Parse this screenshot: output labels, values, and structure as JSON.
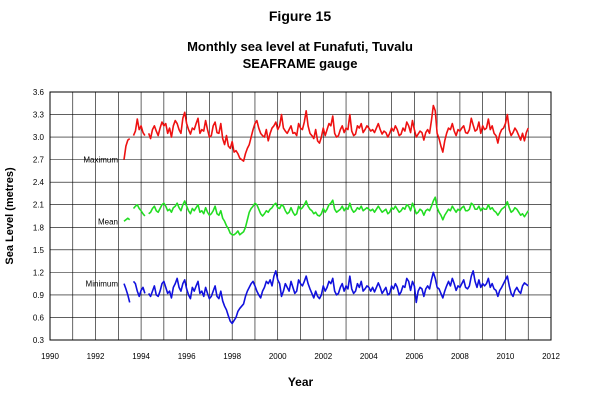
{
  "figure_label": "Figure 15",
  "chart_data": {
    "type": "line",
    "title": "Monthly sea level at Funafuti, Tuvalu",
    "subtitle": "SEAFRAME gauge",
    "xlabel": "Year",
    "ylabel": "Sea Level (metres)",
    "xlim": [
      1990,
      2012
    ],
    "ylim": [
      0.3,
      3.6
    ],
    "xticks": [
      1990,
      1992,
      1994,
      1996,
      1998,
      2000,
      2002,
      2004,
      2006,
      2008,
      2010,
      2012
    ],
    "yticks": [
      0.3,
      0.6,
      0.9,
      1.2,
      1.5,
      1.8,
      2.1,
      2.4,
      2.7,
      3.0,
      3.3,
      3.6
    ],
    "x_start": 1993.25,
    "x_step": 0.0833333,
    "series": [
      {
        "name": "Maximum",
        "color": "#ee1111",
        "values": [
          2.7,
          2.88,
          2.96,
          2.98,
          null,
          3.02,
          3.08,
          3.24,
          3.1,
          3.15,
          3.06,
          3.02,
          null,
          3.05,
          2.98,
          3.1,
          3.15,
          3.08,
          3.02,
          3.12,
          3.2,
          3.15,
          3.18,
          3.05,
          3.12,
          3.0,
          3.15,
          3.22,
          3.18,
          3.1,
          3.05,
          3.25,
          3.33,
          3.18,
          3.1,
          3.04,
          3.12,
          3.1,
          3.18,
          3.25,
          3.05,
          3.1,
          3.08,
          3.22,
          3.1,
          3.0,
          3.02,
          3.15,
          3.2,
          3.06,
          3.05,
          3.18,
          2.98,
          2.9,
          3.02,
          2.88,
          2.85,
          2.94,
          2.8,
          2.82,
          2.78,
          2.72,
          2.7,
          2.68,
          2.78,
          2.85,
          2.9,
          3.0,
          3.1,
          3.18,
          3.22,
          3.12,
          3.05,
          3.02,
          3.0,
          3.1,
          2.95,
          3.05,
          3.12,
          3.15,
          3.2,
          3.1,
          3.15,
          3.3,
          3.12,
          3.08,
          3.05,
          3.1,
          3.15,
          3.05,
          3.06,
          3.02,
          3.18,
          3.12,
          3.1,
          3.2,
          3.35,
          3.15,
          3.05,
          3.02,
          2.98,
          3.1,
          2.95,
          2.92,
          3.0,
          3.12,
          3.02,
          3.1,
          3.18,
          3.15,
          3.28,
          3.05,
          3.0,
          3.02,
          3.1,
          3.15,
          3.06,
          3.12,
          3.1,
          3.3,
          3.08,
          3.02,
          3.04,
          3.15,
          3.12,
          3.18,
          3.06,
          3.1,
          3.15,
          3.12,
          3.08,
          3.1,
          3.06,
          3.12,
          3.18,
          3.1,
          3.04,
          3.08,
          3.06,
          3.0,
          3.05,
          3.12,
          3.08,
          3.15,
          3.1,
          3.02,
          3.04,
          3.12,
          3.08,
          3.2,
          3.15,
          3.06,
          3.22,
          3.1,
          3.0,
          3.04,
          3.08,
          3.06,
          2.96,
          3.06,
          3.1,
          3.05,
          3.22,
          3.42,
          3.35,
          3.05,
          2.98,
          2.88,
          2.8,
          2.95,
          3.05,
          3.12,
          3.1,
          3.18,
          3.08,
          3.02,
          3.1,
          3.08,
          3.12,
          3.15,
          3.06,
          3.05,
          3.1,
          3.25,
          3.16,
          3.08,
          3.1,
          3.2,
          3.05,
          3.15,
          3.1,
          3.12,
          3.24,
          3.1,
          3.15,
          3.05,
          3.02,
          2.92,
          3.04,
          3.1,
          3.12,
          3.18,
          3.3,
          3.1,
          3.02,
          3.06,
          3.12,
          3.08,
          3.02,
          2.96,
          3.05,
          2.95,
          3.06,
          3.12
        ]
      },
      {
        "name": "Mean",
        "color": "#22dd22",
        "values": [
          1.88,
          1.9,
          1.92,
          1.9,
          null,
          2.05,
          2.08,
          2.1,
          2.05,
          2.02,
          1.98,
          1.95,
          null,
          1.98,
          2.0,
          2.05,
          2.08,
          2.02,
          2.0,
          2.05,
          2.1,
          2.12,
          2.08,
          2.02,
          2.04,
          2.0,
          2.06,
          2.08,
          2.12,
          2.06,
          2.02,
          2.1,
          2.15,
          2.08,
          2.02,
          1.98,
          2.05,
          2.02,
          2.06,
          2.1,
          2.0,
          2.02,
          1.98,
          2.06,
          2.0,
          1.96,
          1.98,
          2.02,
          2.08,
          1.98,
          1.96,
          2.02,
          1.92,
          1.88,
          1.82,
          1.78,
          1.72,
          1.7,
          1.7,
          1.72,
          1.75,
          1.7,
          1.72,
          1.74,
          1.8,
          1.9,
          2.0,
          2.05,
          2.08,
          2.12,
          2.1,
          2.04,
          1.98,
          1.95,
          1.98,
          2.02,
          2.0,
          2.04,
          2.06,
          2.1,
          2.12,
          2.06,
          2.05,
          2.1,
          2.08,
          2.02,
          1.98,
          2.0,
          2.06,
          2.0,
          1.96,
          1.98,
          2.08,
          2.04,
          2.06,
          2.1,
          2.15,
          2.08,
          2.04,
          2.02,
          1.98,
          2.0,
          1.96,
          1.95,
          1.98,
          2.05,
          2.0,
          2.04,
          2.1,
          2.12,
          2.16,
          2.04,
          2.0,
          2.02,
          2.04,
          2.08,
          2.02,
          2.06,
          2.04,
          2.12,
          2.04,
          2.0,
          2.02,
          2.06,
          2.04,
          2.08,
          2.02,
          2.04,
          2.06,
          2.04,
          2.02,
          2.04,
          2.0,
          2.04,
          2.08,
          2.04,
          2.0,
          2.02,
          2.04,
          1.98,
          2.0,
          2.06,
          2.04,
          2.08,
          2.04,
          2.0,
          2.02,
          2.06,
          2.04,
          2.1,
          2.08,
          2.02,
          2.12,
          2.06,
          1.98,
          2.0,
          2.04,
          2.02,
          1.96,
          2.02,
          2.04,
          2.02,
          2.08,
          2.15,
          2.2,
          2.06,
          2.0,
          1.96,
          1.9,
          1.96,
          2.0,
          2.04,
          2.02,
          2.08,
          2.04,
          2.0,
          2.04,
          2.02,
          2.06,
          2.08,
          2.02,
          2.02,
          2.04,
          2.12,
          2.1,
          2.04,
          2.04,
          2.08,
          2.02,
          2.06,
          2.04,
          2.04,
          2.1,
          2.04,
          2.06,
          2.02,
          2.0,
          1.96,
          2.0,
          2.04,
          2.06,
          2.08,
          2.14,
          2.06,
          2.0,
          2.02,
          2.06,
          2.04,
          2.0,
          1.96,
          1.98,
          1.94,
          1.98,
          2.02
        ]
      },
      {
        "name": "Minimum",
        "color": "#1111dd",
        "values": [
          1.05,
          0.98,
          0.9,
          0.8,
          null,
          1.08,
          1.05,
          0.95,
          0.88,
          0.96,
          1.0,
          0.92,
          null,
          0.92,
          0.88,
          0.95,
          1.02,
          0.9,
          0.88,
          0.95,
          1.05,
          1.08,
          1.0,
          0.92,
          0.95,
          0.86,
          1.0,
          1.05,
          1.12,
          1.0,
          0.95,
          1.05,
          1.1,
          0.98,
          0.9,
          0.85,
          1.0,
          0.95,
          1.02,
          1.08,
          0.92,
          0.95,
          0.88,
          1.0,
          0.92,
          0.85,
          0.88,
          0.95,
          1.02,
          0.88,
          0.85,
          0.95,
          0.82,
          0.75,
          0.7,
          0.62,
          0.55,
          0.52,
          0.56,
          0.6,
          0.68,
          0.72,
          0.75,
          0.78,
          0.88,
          0.95,
          1.0,
          1.05,
          1.08,
          1.02,
          0.95,
          0.9,
          0.86,
          0.95,
          1.0,
          1.08,
          1.05,
          1.1,
          1.02,
          1.15,
          1.22,
          1.1,
          1.05,
          0.88,
          0.95,
          1.05,
          1.0,
          0.95,
          1.08,
          1.0,
          0.92,
          0.95,
          1.1,
          1.05,
          1.02,
          1.08,
          1.15,
          1.05,
          0.98,
          0.92,
          0.86,
          0.95,
          0.88,
          0.85,
          0.9,
          1.02,
          0.95,
          1.0,
          1.08,
          1.05,
          1.12,
          0.95,
          0.9,
          0.92,
          1.0,
          1.05,
          0.95,
          1.02,
          0.98,
          1.15,
          0.98,
          0.92,
          0.95,
          1.05,
          1.0,
          1.08,
          0.95,
          0.98,
          1.02,
          1.0,
          0.95,
          1.0,
          0.94,
          1.0,
          1.06,
          1.0,
          0.92,
          0.96,
          1.0,
          0.9,
          0.92,
          1.02,
          0.98,
          1.05,
          1.0,
          0.9,
          0.94,
          1.02,
          1.0,
          1.12,
          1.08,
          0.96,
          1.08,
          1.02,
          0.8,
          0.95,
          1.0,
          0.98,
          0.88,
          0.98,
          1.02,
          0.98,
          1.1,
          1.2,
          1.12,
          1.0,
          0.98,
          0.92,
          0.86,
          0.95,
          1.02,
          1.08,
          1.02,
          1.12,
          1.05,
          0.96,
          1.02,
          1.0,
          1.05,
          1.1,
          1.0,
          0.98,
          1.02,
          1.15,
          1.22,
          1.08,
          1.0,
          1.1,
          1.0,
          1.05,
          1.02,
          1.05,
          1.12,
          1.0,
          1.05,
          0.98,
          0.96,
          0.88,
          0.96,
          1.0,
          1.05,
          1.1,
          1.15,
          1.02,
          0.92,
          0.88,
          0.96,
          1.0,
          0.95,
          0.92,
          1.02,
          1.06,
          1.04,
          1.02
        ]
      }
    ],
    "annotations": [
      {
        "text": "Maximum",
        "anchor_series": "Maximum"
      },
      {
        "text": "Mean",
        "anchor_series": "Mean"
      },
      {
        "text": "Minimum",
        "anchor_series": "Minimum"
      }
    ]
  }
}
